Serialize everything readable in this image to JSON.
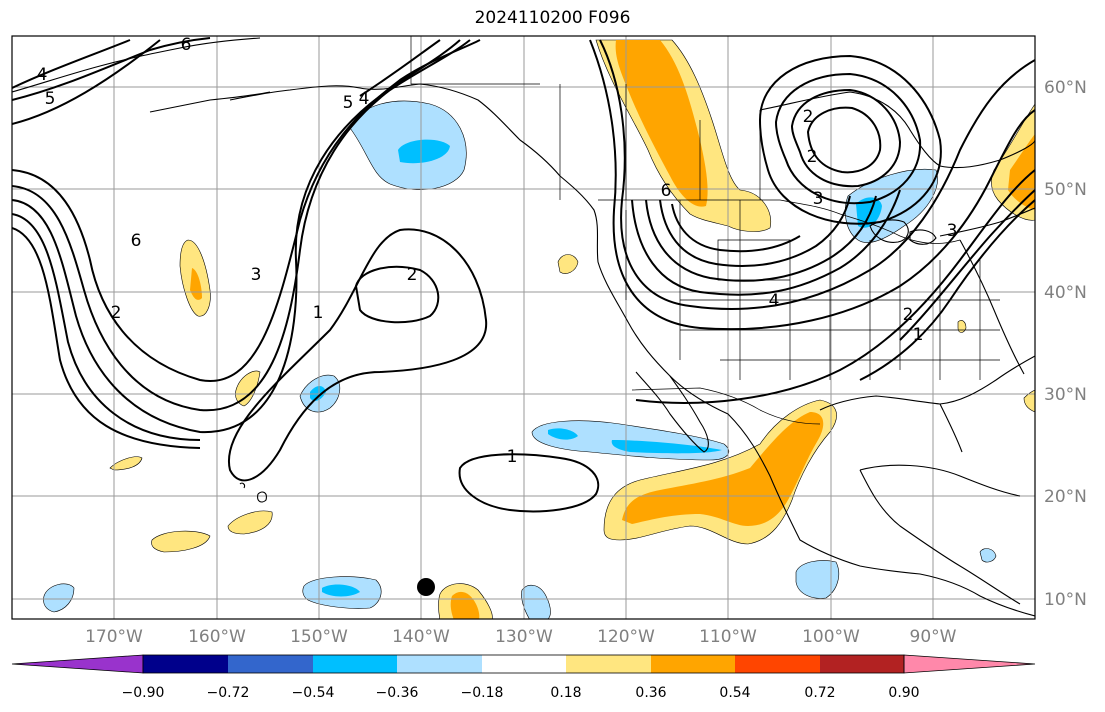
{
  "title": "2024110200 F096",
  "map": {
    "projection": "PlateCarree",
    "region": "North Pacific / North America",
    "grid": true,
    "lat_labels": [
      "60°N",
      "50°N",
      "40°N",
      "30°N",
      "20°N",
      "10°N"
    ],
    "lon_labels": [
      "170°W",
      "160°W",
      "150°W",
      "140°W",
      "130°W",
      "120°W",
      "110°W",
      "100°W",
      "90°W"
    ],
    "contour_labels": [
      "4",
      "5",
      "6",
      "5",
      "4",
      "6",
      "2",
      "3",
      "1",
      "2",
      "1",
      "2",
      "6",
      "3",
      "3",
      "2",
      "4",
      "2",
      "1"
    ],
    "marker": "black-dot"
  },
  "colorbar": {
    "labels": [
      "−0.90",
      "−0.72",
      "−0.54",
      "−0.36",
      "−0.18",
      "0.18",
      "0.36",
      "0.54",
      "0.72",
      "0.90"
    ],
    "colors": [
      "#9933cc",
      "#00008b",
      "#3366cc",
      "#00bfff",
      "#aee0ff",
      "#ffffff",
      "#ffe680",
      "#ffa500",
      "#ff4500",
      "#b22222",
      "#ff88aa"
    ],
    "extend": "both"
  }
}
